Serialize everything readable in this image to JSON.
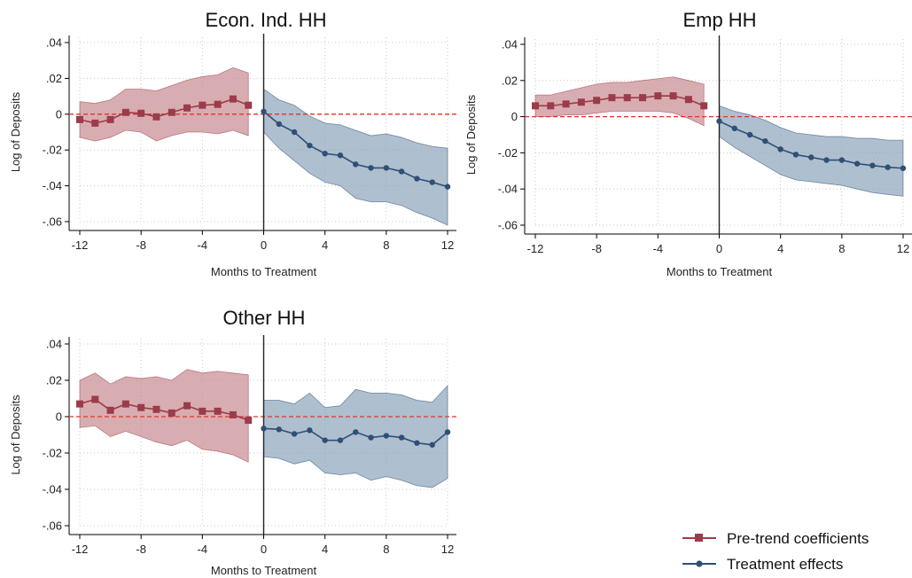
{
  "chart_data": [
    {
      "type": "line",
      "title": "Econ. Ind. HH",
      "xlabel": "Months to Treatment",
      "ylabel": "Log of Deposits",
      "xlim": [
        -12,
        12
      ],
      "ylim": [
        -0.06,
        0.04
      ],
      "xticks": [
        "-12",
        "-8",
        "-4",
        "0",
        "4",
        "8",
        "12"
      ],
      "yticks": [
        ".04",
        ".02",
        "0",
        "-.02",
        "-.04",
        "-.06"
      ],
      "grid": true,
      "reference_line_y": 0,
      "event_line_x": 0,
      "series": [
        {
          "key": "pretrend",
          "x": [
            -12,
            -11,
            -10,
            -9,
            -8,
            -7,
            -6,
            -5,
            -4,
            -3,
            -2,
            -1
          ],
          "values": [
            -0.003,
            -0.005,
            -0.003,
            0.001,
            0.0005,
            -0.0015,
            0.001,
            0.0035,
            0.005,
            0.0055,
            0.0085,
            0.005
          ],
          "lower": [
            -0.013,
            -0.015,
            -0.013,
            -0.009,
            -0.01,
            -0.015,
            -0.012,
            -0.01,
            -0.01,
            -0.011,
            -0.009,
            -0.012
          ],
          "upper": [
            0.007,
            0.006,
            0.008,
            0.014,
            0.014,
            0.013,
            0.016,
            0.019,
            0.021,
            0.022,
            0.026,
            0.023
          ]
        },
        {
          "key": "treatment",
          "x": [
            0,
            1,
            2,
            3,
            4,
            5,
            6,
            7,
            8,
            9,
            10,
            11,
            12
          ],
          "values": [
            0.0015,
            -0.0055,
            -0.01,
            -0.0175,
            -0.022,
            -0.023,
            -0.028,
            -0.03,
            -0.03,
            -0.032,
            -0.036,
            -0.038,
            -0.0405
          ],
          "lower": [
            -0.01,
            -0.019,
            -0.026,
            -0.033,
            -0.038,
            -0.04,
            -0.047,
            -0.049,
            -0.049,
            -0.051,
            -0.055,
            -0.058,
            -0.062
          ],
          "upper": [
            0.014,
            0.008,
            0.005,
            -0.001,
            -0.005,
            -0.006,
            -0.009,
            -0.012,
            -0.011,
            -0.013,
            -0.016,
            -0.018,
            -0.019
          ]
        }
      ]
    },
    {
      "type": "line",
      "title": "Emp HH",
      "xlabel": "Months to Treatment",
      "ylabel": "Log of Deposits",
      "xlim": [
        -12,
        12
      ],
      "ylim": [
        -0.06,
        0.04
      ],
      "xticks": [
        "-12",
        "-8",
        "-4",
        "0",
        "4",
        "8",
        "12"
      ],
      "yticks": [
        ".04",
        ".02",
        "0",
        "-.02",
        "-.04",
        "-.06"
      ],
      "grid": true,
      "reference_line_y": 0,
      "event_line_x": 0,
      "series": [
        {
          "key": "pretrend",
          "x": [
            -12,
            -11,
            -10,
            -9,
            -8,
            -7,
            -6,
            -5,
            -4,
            -3,
            -2,
            -1
          ],
          "values": [
            0.006,
            0.006,
            0.007,
            0.008,
            0.009,
            0.0105,
            0.0105,
            0.0105,
            0.0115,
            0.0115,
            0.0095,
            0.006
          ],
          "lower": [
            0.0,
            0.0,
            0.001,
            0.001,
            0.002,
            0.003,
            0.003,
            0.003,
            0.003,
            0.002,
            -0.001,
            -0.005
          ],
          "upper": [
            0.012,
            0.012,
            0.014,
            0.016,
            0.018,
            0.019,
            0.019,
            0.02,
            0.021,
            0.022,
            0.02,
            0.018
          ]
        },
        {
          "key": "treatment",
          "x": [
            0,
            1,
            2,
            3,
            4,
            5,
            6,
            7,
            8,
            9,
            10,
            11,
            12
          ],
          "values": [
            -0.0025,
            -0.0065,
            -0.01,
            -0.0135,
            -0.018,
            -0.021,
            -0.0225,
            -0.024,
            -0.024,
            -0.026,
            -0.027,
            -0.028,
            -0.0285
          ],
          "lower": [
            -0.011,
            -0.017,
            -0.022,
            -0.027,
            -0.032,
            -0.035,
            -0.036,
            -0.037,
            -0.038,
            -0.04,
            -0.042,
            -0.043,
            -0.044
          ],
          "upper": [
            0.006,
            0.003,
            0.001,
            -0.002,
            -0.006,
            -0.009,
            -0.01,
            -0.011,
            -0.011,
            -0.012,
            -0.012,
            -0.013,
            -0.013
          ]
        }
      ]
    },
    {
      "type": "line",
      "title": "Other HH",
      "xlabel": "Months to Treatment",
      "ylabel": "Log of Deposits",
      "xlim": [
        -12,
        12
      ],
      "ylim": [
        -0.06,
        0.04
      ],
      "xticks": [
        "-12",
        "-8",
        "-4",
        "0",
        "4",
        "8",
        "12"
      ],
      "yticks": [
        ".04",
        ".02",
        "0",
        "-.02",
        "-.04",
        "-.06"
      ],
      "grid": true,
      "reference_line_y": 0,
      "event_line_x": 0,
      "series": [
        {
          "key": "pretrend",
          "x": [
            -12,
            -11,
            -10,
            -9,
            -8,
            -7,
            -6,
            -5,
            -4,
            -3,
            -2,
            -1
          ],
          "values": [
            0.007,
            0.0095,
            0.0035,
            0.007,
            0.005,
            0.004,
            0.002,
            0.006,
            0.003,
            0.003,
            0.001,
            -0.002
          ],
          "lower": [
            -0.006,
            -0.005,
            -0.011,
            -0.008,
            -0.011,
            -0.014,
            -0.016,
            -0.013,
            -0.018,
            -0.019,
            -0.021,
            -0.025
          ],
          "upper": [
            0.02,
            0.024,
            0.018,
            0.022,
            0.021,
            0.022,
            0.02,
            0.026,
            0.024,
            0.025,
            0.024,
            0.023
          ]
        },
        {
          "key": "treatment",
          "x": [
            0,
            1,
            2,
            3,
            4,
            5,
            6,
            7,
            8,
            9,
            10,
            11,
            12
          ],
          "values": [
            -0.0065,
            -0.007,
            -0.0095,
            -0.0075,
            -0.013,
            -0.013,
            -0.0085,
            -0.0115,
            -0.0105,
            -0.0115,
            -0.0145,
            -0.0155,
            -0.0085
          ],
          "lower": [
            -0.022,
            -0.023,
            -0.026,
            -0.024,
            -0.031,
            -0.032,
            -0.031,
            -0.035,
            -0.033,
            -0.035,
            -0.038,
            -0.039,
            -0.034
          ],
          "upper": [
            0.009,
            0.009,
            0.007,
            0.013,
            0.005,
            0.006,
            0.015,
            0.013,
            0.013,
            0.012,
            0.009,
            0.008,
            0.017
          ]
        }
      ]
    }
  ],
  "legend": {
    "placement": "bottom-right",
    "items": [
      {
        "label": "Pre-trend coefficients",
        "color": "#9b3c48",
        "marker": "square"
      },
      {
        "label": "Treatment effects",
        "color": "#2f4f75",
        "marker": "circle"
      }
    ]
  },
  "colors": {
    "pretrend_line": "#9b3c48",
    "pretrend_band": "#c98e93",
    "treatment_line": "#2f4f75",
    "treatment_band": "#8fa6bd",
    "zero_line": "#e0342b",
    "grid": "#c8c8c8"
  }
}
